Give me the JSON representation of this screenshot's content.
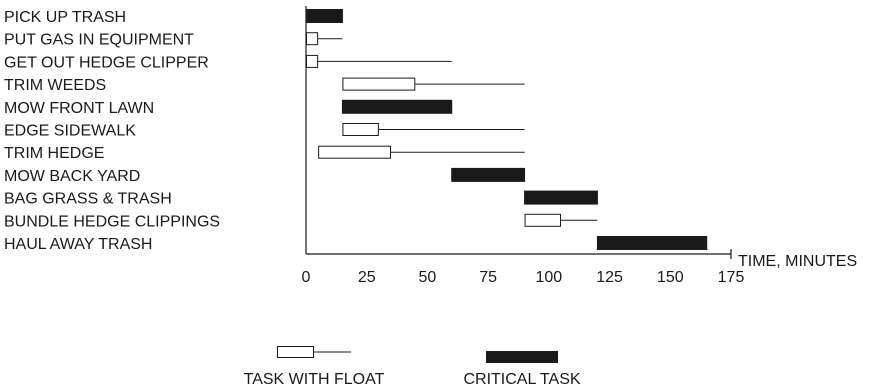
{
  "chart_data": {
    "type": "gantt",
    "xlabel": "TIME, MINUTES",
    "xlim": [
      0,
      175
    ],
    "x_ticks": [
      0,
      25,
      50,
      75,
      100,
      125,
      150,
      175
    ],
    "tasks": [
      {
        "name": "PICK UP TRASH",
        "start": 0,
        "duration": 15,
        "float_end": null,
        "critical": true
      },
      {
        "name": "PUT GAS IN EQUIPMENT",
        "start": 0,
        "duration": 5,
        "float_end": 15,
        "critical": false
      },
      {
        "name": "GET OUT HEDGE CLIPPER",
        "start": 0,
        "duration": 5,
        "float_end": 60,
        "critical": false
      },
      {
        "name": "TRIM WEEDS",
        "start": 15,
        "duration": 30,
        "float_end": 90,
        "critical": false
      },
      {
        "name": "MOW FRONT LAWN",
        "start": 15,
        "duration": 45,
        "float_end": null,
        "critical": true
      },
      {
        "name": "EDGE SIDEWALK",
        "start": 15,
        "duration": 15,
        "float_end": 90,
        "critical": false
      },
      {
        "name": "TRIM HEDGE",
        "start": 5,
        "duration": 30,
        "float_end": 90,
        "critical": false
      },
      {
        "name": "MOW BACK YARD",
        "start": 60,
        "duration": 30,
        "float_end": null,
        "critical": true
      },
      {
        "name": "BAG GRASS & TRASH",
        "start": 90,
        "duration": 30,
        "float_end": null,
        "critical": true
      },
      {
        "name": "BUNDLE HEDGE CLIPPINGS",
        "start": 90,
        "duration": 15,
        "float_end": 120,
        "critical": false
      },
      {
        "name": "HAUL AWAY TRASH",
        "start": 120,
        "duration": 45,
        "float_end": null,
        "critical": true
      }
    ],
    "legend": {
      "placement": "bottom",
      "float_label": "TASK WITH FLOAT",
      "critical_label": "CRITICAL TASK"
    },
    "colors": {
      "critical": "#1a1a1a",
      "float_fill": "#ffffff",
      "line": "#1a1a1a"
    }
  }
}
